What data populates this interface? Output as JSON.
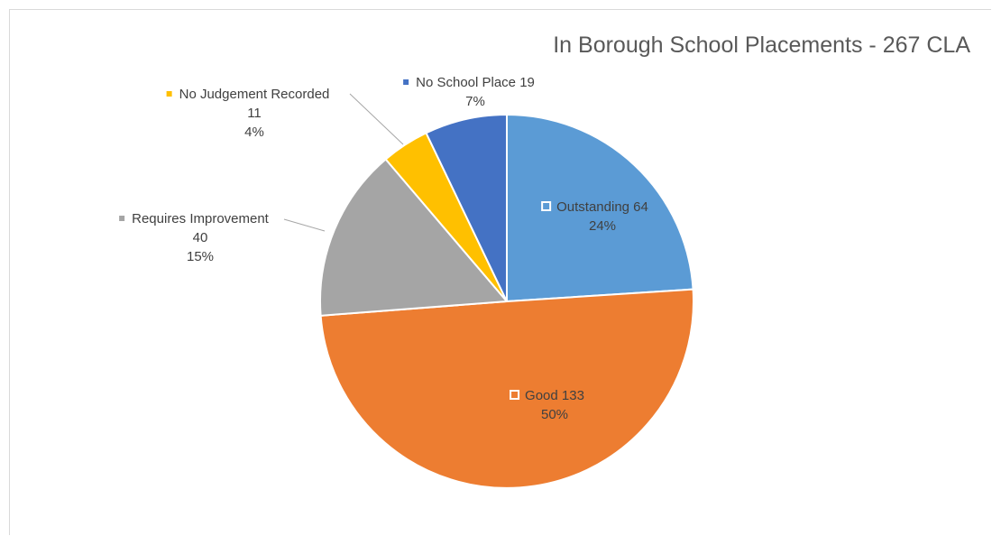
{
  "chart_data": {
    "type": "pie",
    "title": "In Borough School Placements - 267 CLA",
    "slices": [
      {
        "name": "Outstanding",
        "value": 64,
        "percent": "24%",
        "color": "#5b9bd5",
        "label_lines": [
          "Outstanding 64",
          "24%"
        ]
      },
      {
        "name": "Good",
        "value": 133,
        "percent": "50%",
        "color": "#ed7d31",
        "label_lines": [
          "Good 133",
          "50%"
        ]
      },
      {
        "name": "Requires Improvement",
        "value": 40,
        "percent": "15%",
        "color": "#a5a5a5",
        "label_lines": [
          "Requires Improvement",
          "40",
          "15%"
        ]
      },
      {
        "name": "No Judgement Recorded",
        "value": 11,
        "percent": "4%",
        "color": "#ffc000",
        "label_lines": [
          "No Judgement Recorded",
          "11",
          "4%"
        ]
      },
      {
        "name": "No School Place",
        "value": 19,
        "percent": "7%",
        "color": "#4472c4",
        "label_lines": [
          "No School Place 19",
          "7%"
        ]
      }
    ]
  }
}
